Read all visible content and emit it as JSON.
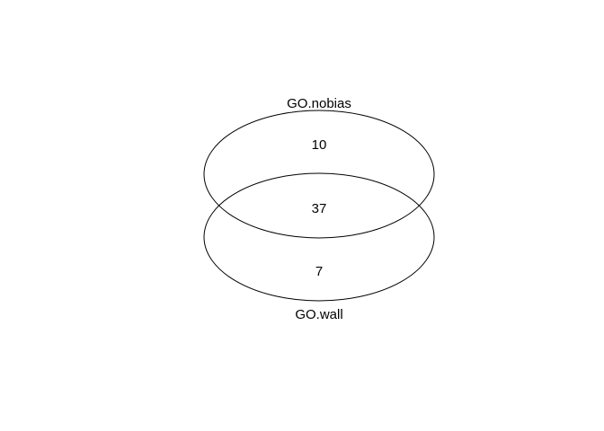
{
  "venn": {
    "sets": [
      {
        "label": "GO.nobias"
      },
      {
        "label": "GO.wall"
      }
    ],
    "counts": {
      "only_top": "10",
      "intersection": "37",
      "only_bottom": "7"
    },
    "outline_color": "#000000",
    "text_color": "#000000"
  }
}
